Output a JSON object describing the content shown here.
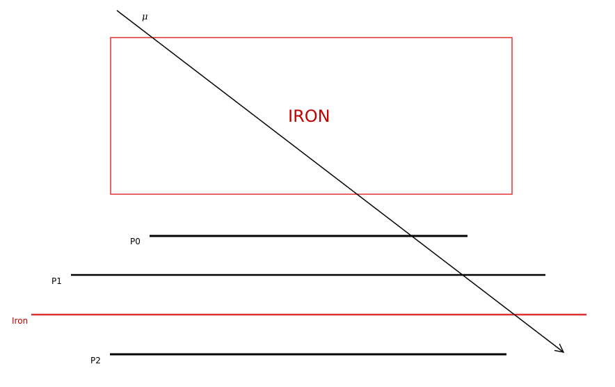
{
  "diagram": {
    "particle_label": "μ",
    "iron_block_label": "IRON",
    "planes": [
      {
        "label": "P0"
      },
      {
        "label": "P1"
      },
      {
        "label": "Iron"
      },
      {
        "label": "P2"
      }
    ]
  },
  "colors": {
    "iron": "#e03030",
    "iron_text": "#c00000",
    "line": "#000000"
  }
}
